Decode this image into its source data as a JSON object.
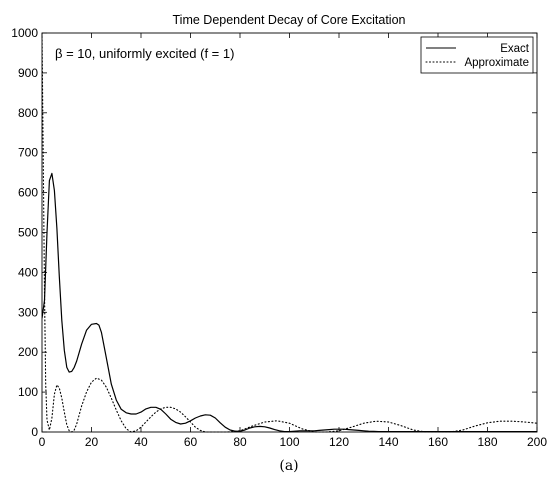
{
  "chart_data": {
    "type": "line",
    "title": "Time Dependent Decay of Core Excitation",
    "annotation": "β = 10, uniformly excited (f = 1)",
    "caption": "(a)",
    "xlabel": "",
    "ylabel": "",
    "xlim": [
      0,
      200
    ],
    "ylim": [
      0,
      1000
    ],
    "xticks": [
      0,
      20,
      40,
      60,
      80,
      100,
      120,
      140,
      160,
      180,
      200
    ],
    "yticks": [
      0,
      100,
      200,
      300,
      400,
      500,
      600,
      700,
      800,
      900,
      1000
    ],
    "grid": false,
    "legend_position": "top-right",
    "series": [
      {
        "name": "Exact",
        "style": "solid",
        "color": "#000000",
        "x": [
          0,
          1,
          2,
          3,
          4,
          5,
          6,
          7,
          8,
          9,
          10,
          11,
          12,
          13,
          14,
          16,
          18,
          20,
          22,
          23,
          24,
          26,
          28,
          30,
          32,
          34,
          36,
          38,
          40,
          42,
          44,
          46,
          48,
          50,
          52,
          54,
          56,
          58,
          60,
          62,
          64,
          66,
          68,
          70,
          72,
          74,
          76,
          78,
          80,
          82,
          84,
          86,
          88,
          90,
          92,
          94,
          96,
          98,
          100,
          102,
          104,
          106,
          108,
          110,
          112,
          114,
          116,
          118,
          120,
          122,
          124,
          126,
          128,
          130,
          132,
          134,
          136,
          138,
          140,
          142,
          144,
          146,
          148,
          150,
          155,
          160,
          165,
          170,
          175,
          180,
          185,
          190,
          195,
          200
        ],
        "y": [
          285,
          330,
          500,
          630,
          648,
          605,
          510,
          390,
          280,
          205,
          162,
          150,
          152,
          162,
          178,
          220,
          255,
          270,
          272,
          268,
          250,
          185,
          120,
          80,
          57,
          48,
          45,
          45,
          50,
          58,
          62,
          62,
          57,
          45,
          32,
          24,
          20,
          22,
          28,
          35,
          40,
          43,
          42,
          35,
          23,
          12,
          5,
          2,
          2,
          5,
          10,
          13,
          14,
          13,
          10,
          6,
          3,
          1,
          1,
          2,
          3,
          3,
          3,
          3,
          4,
          5,
          6,
          7,
          7,
          7,
          6,
          5,
          4,
          3,
          2,
          1.5,
          1,
          1,
          1,
          1,
          1,
          1,
          1,
          1,
          1,
          1,
          1,
          1,
          1,
          1,
          1,
          1,
          1,
          1
        ]
      },
      {
        "name": "Approximate",
        "style": "dotted",
        "color": "#000000",
        "x": [
          0,
          0.5,
          1,
          1.5,
          2,
          3,
          4,
          5,
          6,
          7,
          8,
          9,
          10,
          11,
          12,
          13,
          14,
          15,
          16,
          18,
          20,
          22,
          24,
          26,
          28,
          30,
          32,
          34,
          36,
          38,
          40,
          42,
          44,
          46,
          48,
          50,
          52,
          54,
          56,
          58,
          60,
          62,
          64,
          66,
          68,
          70,
          75,
          80,
          85,
          90,
          95,
          100,
          105,
          110,
          115,
          120,
          125,
          130,
          135,
          140,
          145,
          150,
          155,
          160,
          165,
          170,
          175,
          180,
          185,
          190,
          195,
          200
        ],
        "y": [
          1000,
          700,
          350,
          120,
          30,
          5,
          35,
          95,
          118,
          110,
          85,
          50,
          18,
          3,
          0,
          5,
          20,
          42,
          65,
          100,
          125,
          135,
          130,
          112,
          85,
          55,
          28,
          8,
          0,
          3,
          12,
          25,
          38,
          50,
          58,
          62,
          62,
          58,
          50,
          38,
          25,
          12,
          4,
          0,
          0,
          0,
          0,
          3,
          15,
          25,
          28,
          22,
          8,
          0,
          0,
          3,
          12,
          22,
          27,
          25,
          16,
          5,
          0,
          0,
          0,
          5,
          15,
          23,
          27,
          27,
          25,
          22
        ]
      }
    ]
  }
}
